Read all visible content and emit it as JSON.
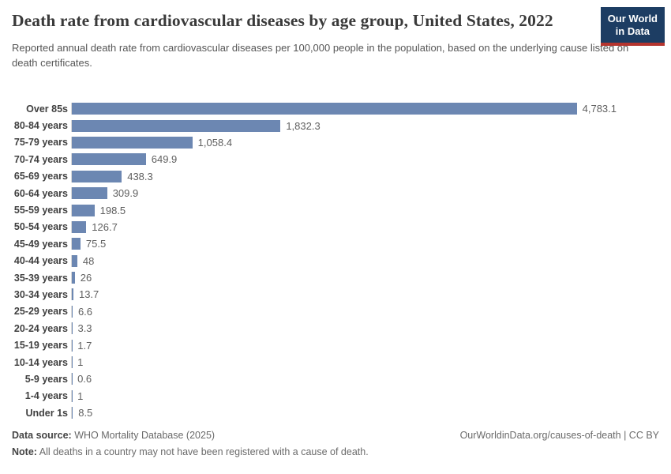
{
  "header": {
    "title": "Death rate from cardiovascular diseases by age group, United States, 2022",
    "subtitle": "Reported annual death rate from cardiovascular diseases per 100,000 people in the population, based on the underlying cause listed on death certificates.",
    "logo": {
      "line1": "Our World",
      "line2": "in Data"
    }
  },
  "chart_data": {
    "type": "bar",
    "orientation": "horizontal",
    "title": "Death rate from cardiovascular diseases by age group, United States, 2022",
    "categories": [
      "Over 85s",
      "80-84 years",
      "75-79 years",
      "70-74 years",
      "65-69 years",
      "60-64 years",
      "55-59 years",
      "50-54 years",
      "45-49 years",
      "40-44 years",
      "35-39 years",
      "30-34 years",
      "25-29 years",
      "20-24 years",
      "15-19 years",
      "10-14 years",
      "5-9 years",
      "1-4 years",
      "Under 1s"
    ],
    "values": [
      4783.1,
      1832.3,
      1058.4,
      649.9,
      438.3,
      309.9,
      198.5,
      126.7,
      75.5,
      48,
      26,
      13.7,
      6.6,
      3.3,
      1.7,
      1,
      0.6,
      1,
      8.5
    ],
    "value_labels": [
      "4,783.1",
      "1,832.3",
      "1,058.4",
      "649.9",
      "438.3",
      "309.9",
      "198.5",
      "126.7",
      "75.5",
      "48",
      "26",
      "13.7",
      "6.6",
      "3.3",
      "1.7",
      "1",
      "0.6",
      "1",
      "8.5"
    ],
    "xlim": [
      0,
      4783.1
    ],
    "grid": false,
    "legend": "none",
    "bar_color": "#6c87b2",
    "axis_line_color": "#d9d9d9"
  },
  "footer": {
    "data_source_label": "Data source:",
    "data_source_value": "WHO Mortality Database (2025)",
    "note_label": "Note:",
    "note_value": "All deaths in a country may not have been registered with a cause of death.",
    "attribution": "OurWorldinData.org/causes-of-death | CC BY"
  },
  "colors": {
    "bar": "#6c87b2",
    "logo_background": "#1d3d63",
    "logo_stripe": "#b5352f",
    "title_text": "#3a3a3a",
    "subtitle_text": "#565656",
    "value_text": "#5f5f5f"
  }
}
